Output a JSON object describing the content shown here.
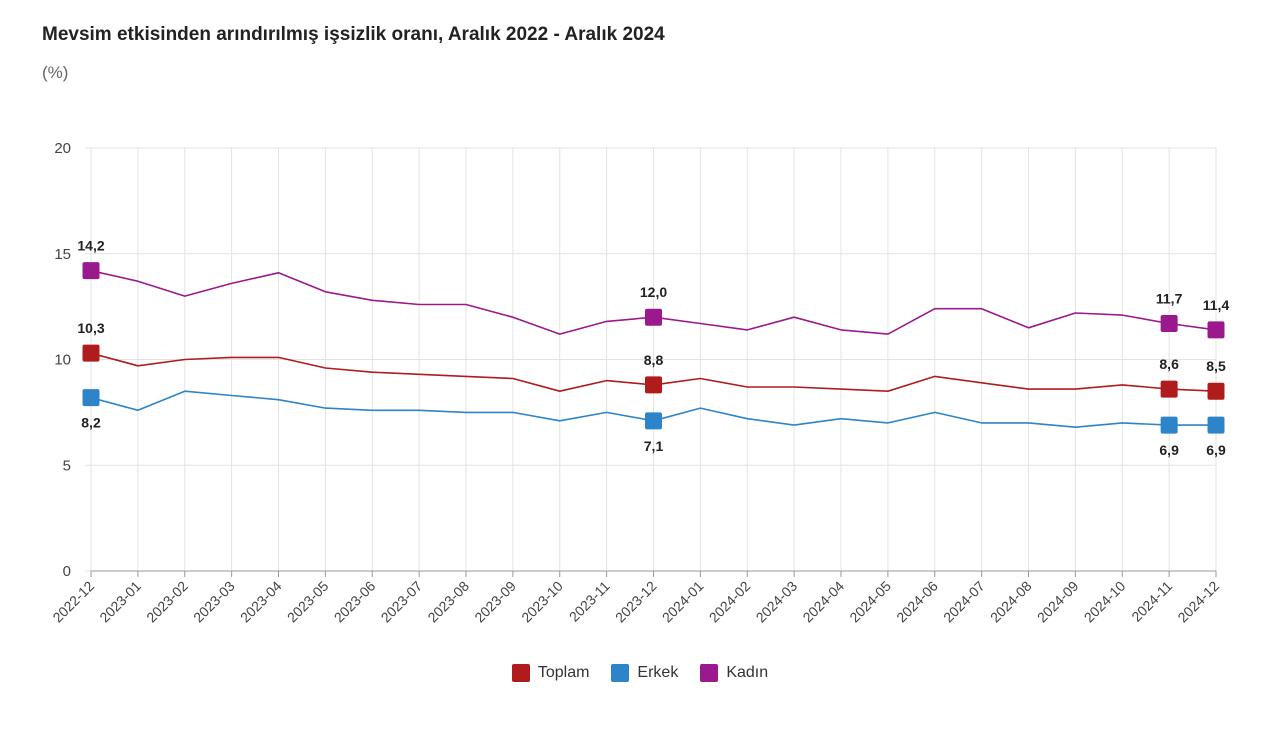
{
  "title": "Mevsim etkisinden arındırılmış işsizlik oranı, Aralık 2022 - Aralık 2024",
  "unit_label": "(%)",
  "colors": {
    "toplam": "#b01c1c",
    "erkek": "#2d84c8",
    "kadin": "#9a1a8e"
  },
  "chart_data": {
    "type": "line",
    "title": "Mevsim etkisinden arındırılmış işsizlik oranı, Aralık 2022 - Aralık 2024",
    "ylabel": "(%)",
    "ylim": [
      0,
      20
    ],
    "yticks": [
      "0",
      "5",
      "10",
      "15",
      "20"
    ],
    "categories": [
      "2022-12",
      "2023-01",
      "2023-02",
      "2023-03",
      "2023-04",
      "2023-05",
      "2023-06",
      "2023-07",
      "2023-08",
      "2023-09",
      "2023-10",
      "2023-11",
      "2023-12",
      "2024-01",
      "2024-02",
      "2024-03",
      "2024-04",
      "2024-05",
      "2024-06",
      "2024-07",
      "2024-08",
      "2024-09",
      "2024-10",
      "2024-11",
      "2024-12"
    ],
    "series": [
      {
        "name": "Toplam",
        "color": "#b01c1c",
        "values": [
          10.3,
          9.7,
          10.0,
          10.1,
          10.1,
          9.6,
          9.4,
          9.3,
          9.2,
          9.1,
          8.5,
          9.0,
          8.8,
          9.1,
          8.7,
          8.7,
          8.6,
          8.5,
          9.2,
          8.9,
          8.6,
          8.6,
          8.8,
          8.6,
          8.5
        ],
        "labels": [
          {
            "index": 0,
            "text": "10,3",
            "pos": "above"
          },
          {
            "index": 12,
            "text": "8,8",
            "pos": "above"
          },
          {
            "index": 23,
            "text": "8,6",
            "pos": "above"
          },
          {
            "index": 24,
            "text": "8,5",
            "pos": "above"
          }
        ]
      },
      {
        "name": "Erkek",
        "color": "#2d84c8",
        "values": [
          8.2,
          7.6,
          8.5,
          8.3,
          8.1,
          7.7,
          7.6,
          7.6,
          7.5,
          7.5,
          7.1,
          7.5,
          7.1,
          7.7,
          7.2,
          6.9,
          7.2,
          7.0,
          7.5,
          7.0,
          7.0,
          6.8,
          7.0,
          6.9,
          6.9
        ],
        "labels": [
          {
            "index": 0,
            "text": "8,2",
            "pos": "below"
          },
          {
            "index": 12,
            "text": "7,1",
            "pos": "below"
          },
          {
            "index": 23,
            "text": "6,9",
            "pos": "below"
          },
          {
            "index": 24,
            "text": "6,9",
            "pos": "below"
          }
        ]
      },
      {
        "name": "Kadın",
        "color": "#9a1a8e",
        "values": [
          14.2,
          13.7,
          13.0,
          13.6,
          14.1,
          13.2,
          12.8,
          12.6,
          12.6,
          12.0,
          11.2,
          11.8,
          12.0,
          11.7,
          11.4,
          12.0,
          11.4,
          11.2,
          12.4,
          12.4,
          11.5,
          12.2,
          12.1,
          11.7,
          11.4
        ],
        "labels": [
          {
            "index": 0,
            "text": "14,2",
            "pos": "above"
          },
          {
            "index": 12,
            "text": "12,0",
            "pos": "above"
          },
          {
            "index": 23,
            "text": "11,7",
            "pos": "above"
          },
          {
            "index": 24,
            "text": "11,4",
            "pos": "above"
          }
        ]
      }
    ],
    "legend": [
      "Toplam",
      "Erkek",
      "Kadın"
    ],
    "grid": true
  }
}
